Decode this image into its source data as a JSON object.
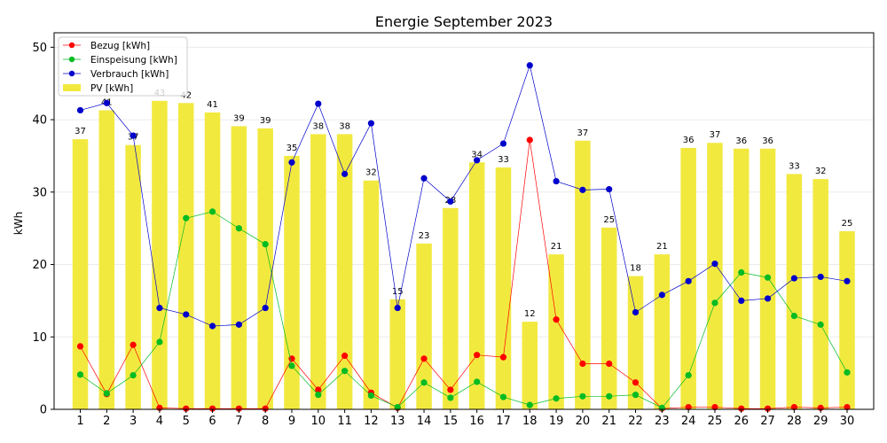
{
  "chart_data": {
    "type": "bar",
    "title": "Energie September 2023",
    "xlabel": "",
    "ylabel": "kWh",
    "ylim": [
      0,
      52
    ],
    "yticks": [
      0,
      10,
      20,
      30,
      40,
      50
    ],
    "grid": "horizontal",
    "legend_position": "top-left",
    "categories": [
      "1",
      "2",
      "3",
      "4",
      "5",
      "6",
      "7",
      "8",
      "9",
      "10",
      "11",
      "12",
      "13",
      "14",
      "15",
      "16",
      "17",
      "18",
      "19",
      "20",
      "21",
      "22",
      "23",
      "24",
      "25",
      "26",
      "27",
      "28",
      "29",
      "30"
    ],
    "bar_series": {
      "name": "PV [kWh]",
      "color": "#f2e93f",
      "values": [
        37.3,
        41.3,
        36.5,
        42.6,
        42.3,
        41.0,
        39.1,
        38.8,
        35.0,
        38.0,
        38.0,
        31.6,
        15.2,
        22.9,
        27.8,
        34.1,
        33.4,
        12.1,
        21.4,
        37.1,
        25.1,
        18.4,
        21.4,
        36.1,
        36.8,
        36.0,
        36.0,
        32.5,
        31.8,
        24.6
      ],
      "labels": [
        "37",
        "41",
        "37",
        "43",
        "42",
        "41",
        "39",
        "39",
        "35",
        "38",
        "38",
        "32",
        "15",
        "23",
        "28",
        "34",
        "33",
        "12",
        "21",
        "37",
        "25",
        "18",
        "21",
        "36",
        "37",
        "36",
        "36",
        "33",
        "32",
        "25"
      ]
    },
    "line_series": [
      {
        "name": "Bezug [kWh]",
        "color": "#ff0000",
        "values": [
          8.7,
          2.1,
          8.9,
          0.2,
          0.1,
          0.1,
          0.1,
          0.1,
          7.0,
          2.7,
          7.4,
          2.3,
          0.2,
          7.0,
          2.7,
          7.5,
          7.2,
          37.2,
          12.4,
          6.3,
          6.3,
          3.7,
          0.1,
          0.3,
          0.3,
          0.1,
          0.1,
          0.3,
          0.2,
          0.3
        ]
      },
      {
        "name": "Einspeisung [kWh]",
        "color": "#00bb22",
        "values": [
          4.8,
          2.2,
          4.7,
          9.3,
          26.4,
          27.3,
          25.0,
          22.8,
          6.0,
          2.0,
          5.3,
          1.9,
          0.3,
          3.7,
          1.6,
          3.8,
          1.7,
          0.6,
          1.5,
          1.8,
          1.8,
          2.0,
          0.2,
          4.7,
          14.7,
          18.9,
          18.2,
          12.9,
          11.7,
          5.1
        ]
      },
      {
        "name": "Verbrauch [kWh]",
        "color": "#0000cc",
        "values": [
          41.3,
          42.3,
          37.8,
          14.0,
          13.1,
          11.5,
          11.7,
          14.0,
          34.1,
          42.2,
          32.5,
          39.5,
          14.0,
          31.9,
          28.7,
          34.4,
          36.7,
          47.5,
          31.5,
          30.3,
          30.4,
          13.4,
          15.8,
          17.7,
          20.1,
          15.0,
          15.3,
          18.1,
          18.3,
          17.7
        ]
      }
    ]
  }
}
